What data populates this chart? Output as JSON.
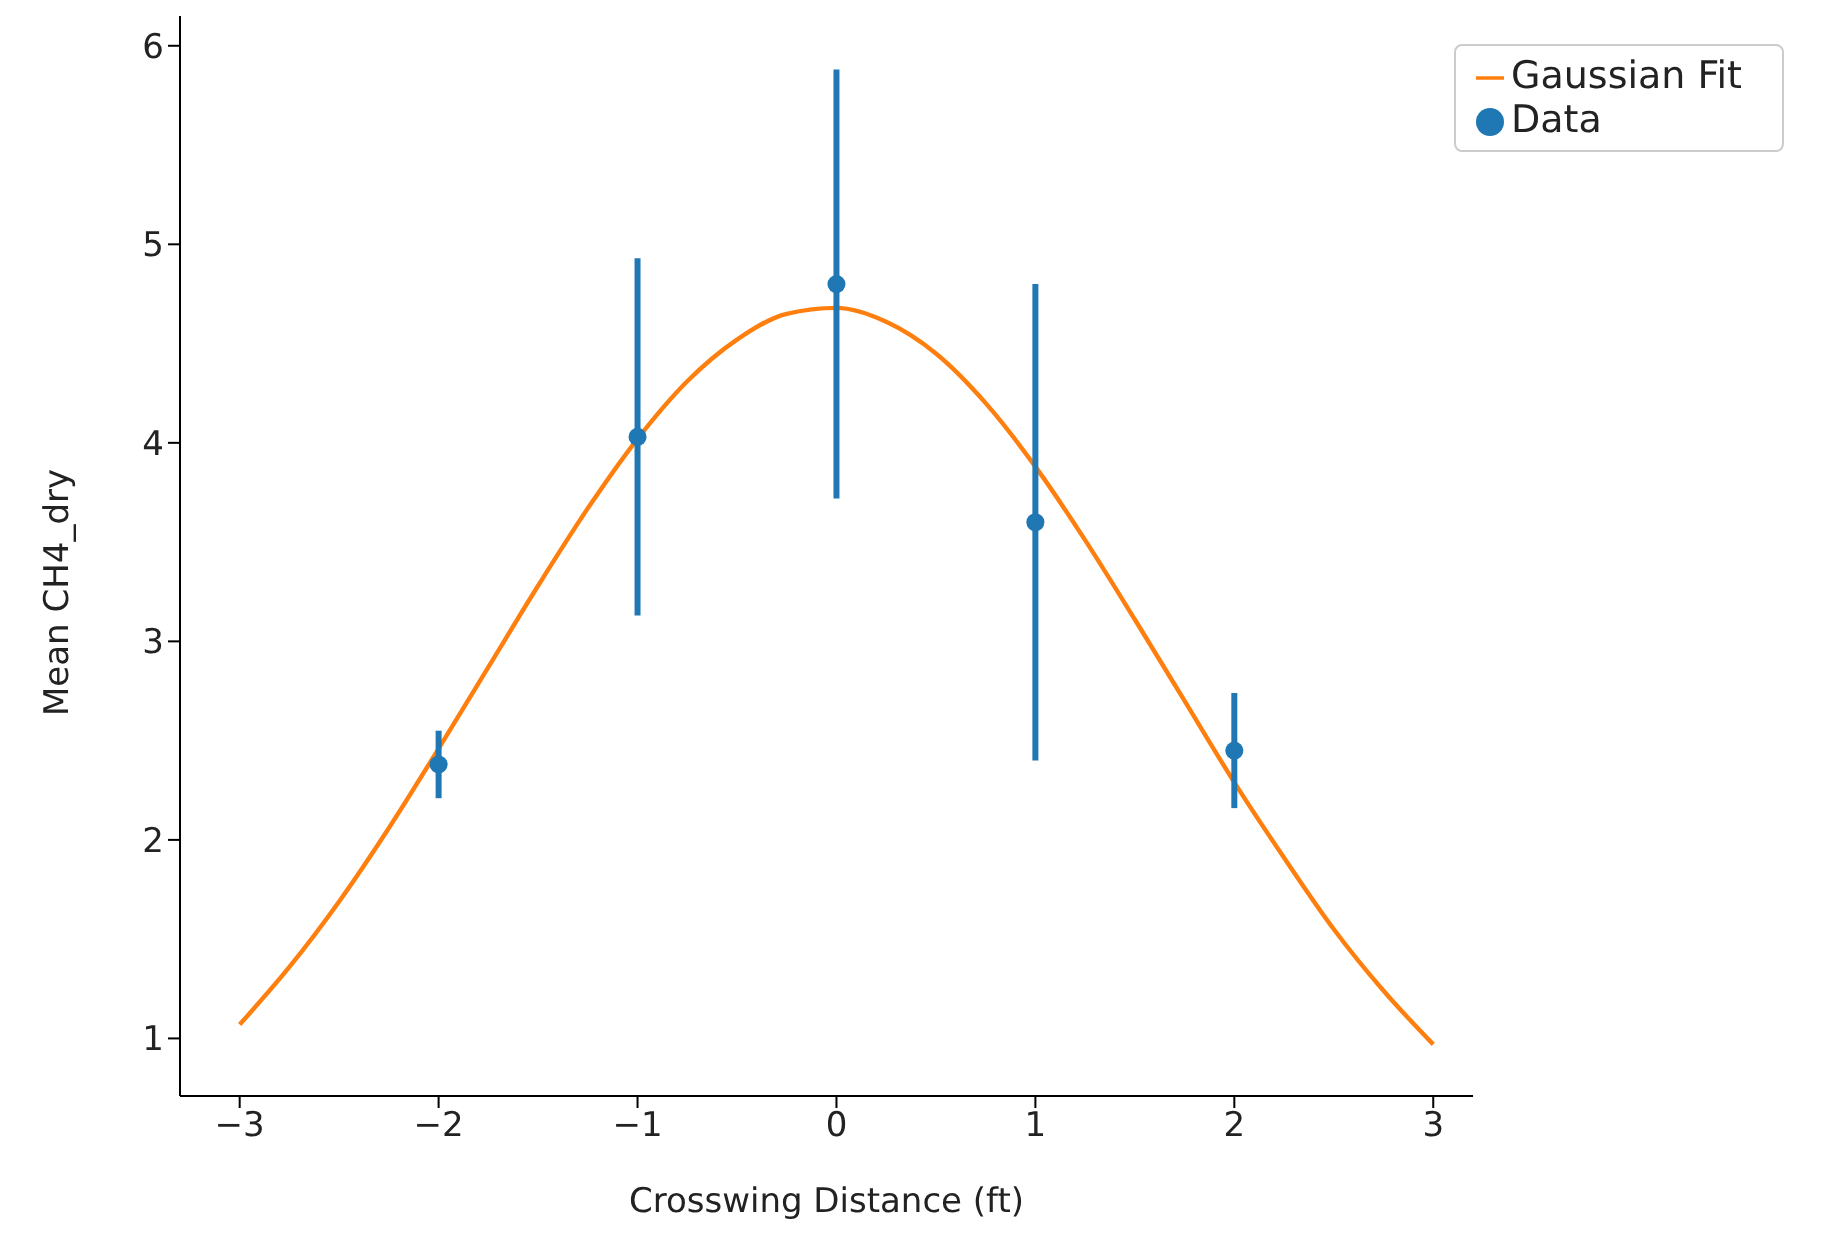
{
  "chart_data": {
    "type": "scatter",
    "xlabel": "Crosswing Distance (ft)",
    "ylabel": "Mean CH4_dry",
    "xlim": [
      -3.3,
      3.2
    ],
    "xticks": [
      {
        "value": -3,
        "label": "−3"
      },
      {
        "value": -2,
        "label": "−2"
      },
      {
        "value": -1,
        "label": "−1"
      },
      0,
      1,
      2,
      3
    ],
    "ylim": [
      0.71,
      6.15
    ],
    "yticks": [
      1,
      2,
      3,
      4,
      5,
      6
    ],
    "grid": false,
    "legend": "top right",
    "series": [
      {
        "name": "Gaussian Fit",
        "type": "line",
        "color": "#ff7f0e",
        "marker": "none",
        "line_style": "solid",
        "x": [
          -3,
          -2.75,
          -2.5,
          -2.25,
          -2,
          -1.75,
          -1.5,
          -1.25,
          -1,
          -0.75,
          -0.5,
          -0.25,
          0,
          0.25,
          0.5,
          0.75,
          1,
          1.25,
          1.5,
          1.75,
          2,
          2.25,
          2.5,
          2.75,
          3
        ],
        "values": [
          1.07,
          1.36,
          1.69,
          2.06,
          2.46,
          2.87,
          3.28,
          3.67,
          4.02,
          4.31,
          4.52,
          4.65,
          4.68,
          4.61,
          4.45,
          4.2,
          3.88,
          3.51,
          3.11,
          2.7,
          2.29,
          1.91,
          1.55,
          1.24,
          0.97
        ]
      },
      {
        "name": "Data",
        "color": "#1f77b4",
        "marker": "circle",
        "x": [
          -2,
          -1,
          0,
          1,
          2
        ],
        "values": [
          2.38,
          4.03,
          4.8,
          3.6,
          2.45
        ],
        "errors": [
          0.17,
          0.9,
          1.08,
          1.2,
          0.29
        ]
      }
    ]
  }
}
